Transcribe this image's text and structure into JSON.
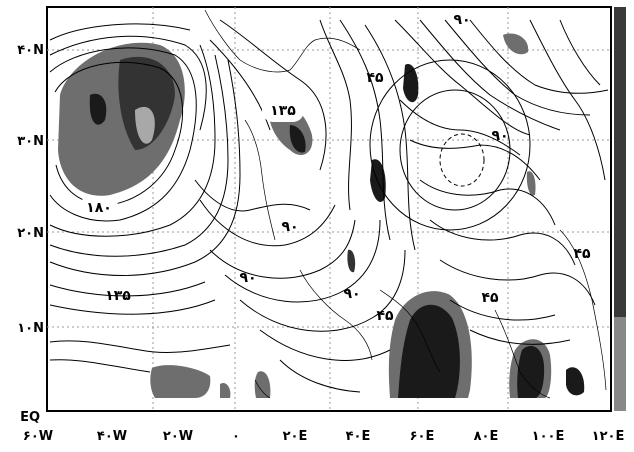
{
  "lat_labels": [
    "۴۰N",
    "۳۰N",
    "۲۰N",
    "۱۰N",
    "EQ"
  ],
  "lon_labels": [
    "۶۰W",
    "۴۰W",
    "۲۰W",
    "۰",
    "۲۰E",
    "۴۰E",
    "۶۰E",
    "۸۰E",
    "۱۰۰E",
    "۱۲۰E"
  ],
  "contour_labels": {
    "c180": "۱۸۰",
    "c135_west": "۱۳۵",
    "c135_africa": "۱۳۵",
    "c90_central": "۹۰",
    "c90_sahara": "۹۰",
    "c90_east": "۹۰",
    "c90_india_north": "۹۰",
    "c90_bay": "۹۰",
    "c45_mid": "۴۵",
    "c45_arabia": "۴۵",
    "c45_india": "۴۵",
    "c45_east": "۴۵"
  },
  "colors": {
    "shade_dark": "#1a1a1a",
    "shade_mid": "#6e6e6e",
    "shade_light": "#a8a8a8",
    "contour": "#000000",
    "grid": "#9a9a9a",
    "colorbar_dark": "#3a3a3a",
    "colorbar_light": "#888888"
  }
}
